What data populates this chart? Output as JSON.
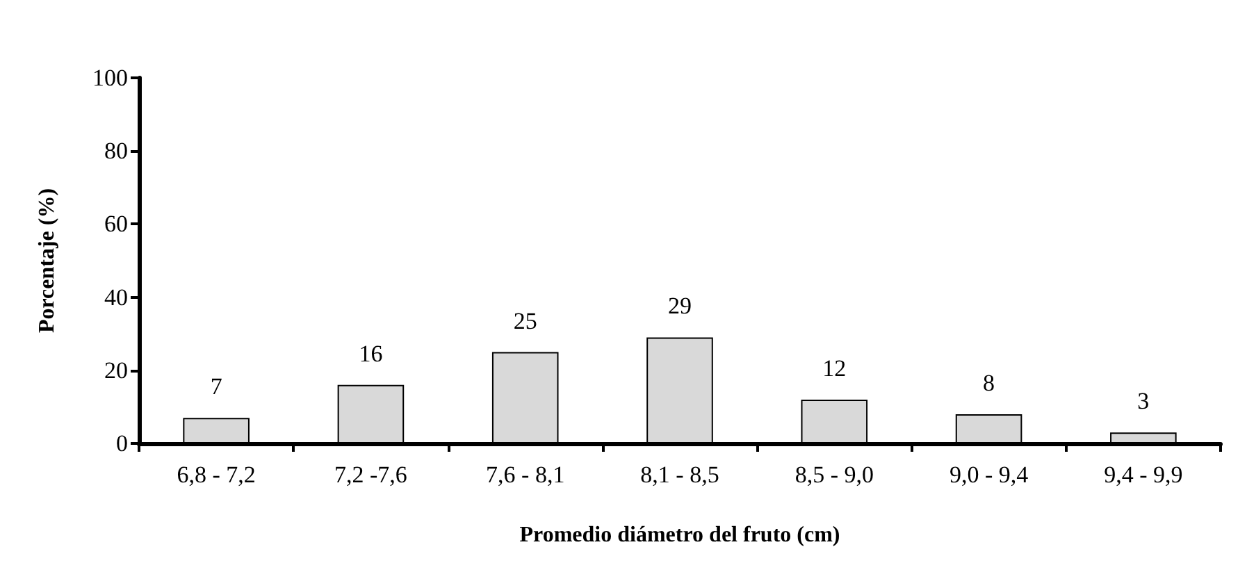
{
  "chart_data": {
    "type": "bar",
    "xlabel": "Promedio diámetro del fruto (cm)",
    "ylabel": "Porcentaje (%)",
    "categories": [
      "6,8 - 7,2",
      "7,2 -7,6",
      "7,6 - 8,1",
      "8,1 - 8,5",
      "8,5 - 9,0",
      "9,0 - 9,4",
      "9,4 - 9,9"
    ],
    "values": [
      7,
      16,
      25,
      29,
      12,
      8,
      3
    ],
    "color": "#d9d9d9",
    "ylim": [
      0,
      100
    ],
    "yticks": [
      0,
      20,
      40,
      60,
      80,
      100
    ],
    "data_labels": true,
    "grid": false
  }
}
